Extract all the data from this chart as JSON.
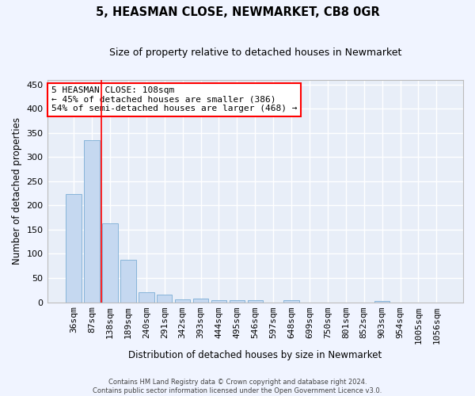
{
  "title": "5, HEASMAN CLOSE, NEWMARKET, CB8 0GR",
  "subtitle": "Size of property relative to detached houses in Newmarket",
  "xlabel": "Distribution of detached houses by size in Newmarket",
  "ylabel": "Number of detached properties",
  "bar_color": "#c5d8f0",
  "bar_edge_color": "#7badd4",
  "background_color": "#e8eef8",
  "grid_color": "#ffffff",
  "categories": [
    "36sqm",
    "87sqm",
    "138sqm",
    "189sqm",
    "240sqm",
    "291sqm",
    "342sqm",
    "393sqm",
    "444sqm",
    "495sqm",
    "546sqm",
    "597sqm",
    "648sqm",
    "699sqm",
    "750sqm",
    "801sqm",
    "852sqm",
    "903sqm",
    "954sqm",
    "1005sqm",
    "1056sqm"
  ],
  "values": [
    224,
    335,
    163,
    87,
    21,
    16,
    6,
    8,
    5,
    5,
    4,
    0,
    4,
    0,
    0,
    0,
    0,
    3,
    0,
    0,
    0
  ],
  "ylim": [
    0,
    460
  ],
  "yticks": [
    0,
    50,
    100,
    150,
    200,
    250,
    300,
    350,
    400,
    450
  ],
  "property_line_x": 1.5,
  "ann_line1": "5 HEASMAN CLOSE: 108sqm",
  "ann_line2": "← 45% of detached houses are smaller (386)",
  "ann_line3": "54% of semi-detached houses are larger (468) →",
  "footer_line1": "Contains HM Land Registry data © Crown copyright and database right 2024.",
  "footer_line2": "Contains public sector information licensed under the Open Government Licence v3.0."
}
